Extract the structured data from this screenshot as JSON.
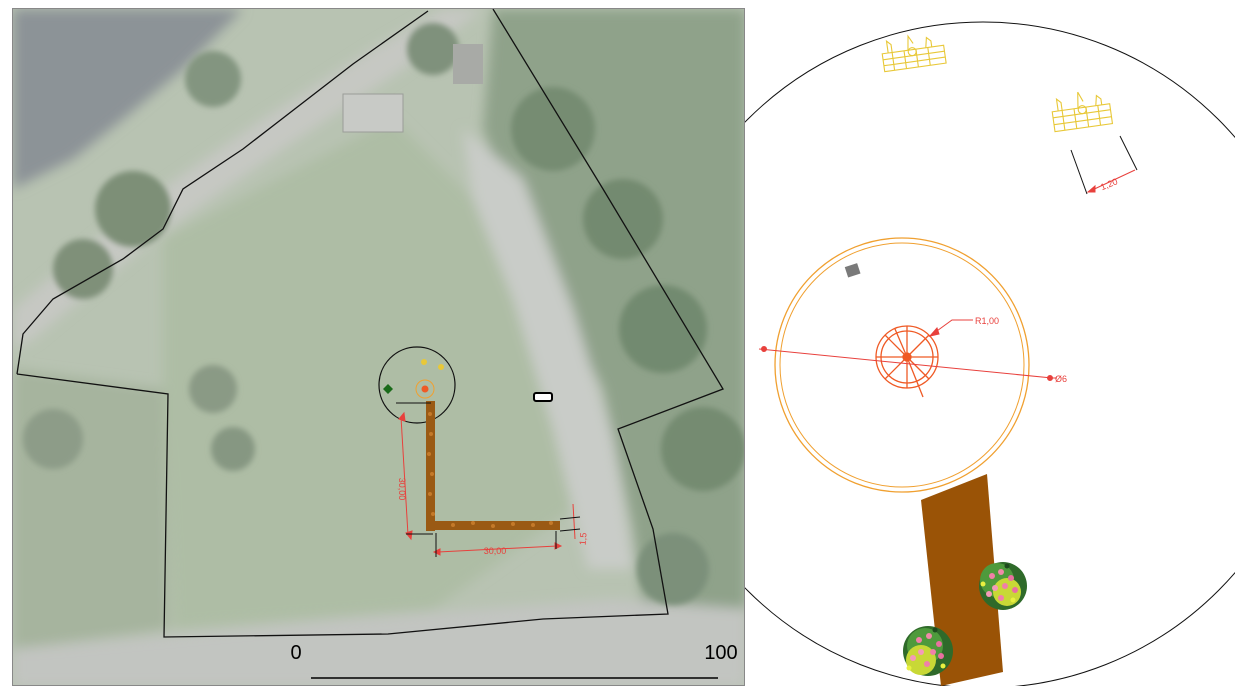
{
  "aerial_map": {
    "scale_bar": {
      "start_label": "0",
      "end_label": "100"
    },
    "dimensions": {
      "vertical_leg": "30,00",
      "horizontal_leg": "30,00",
      "path_width": "1,5"
    }
  },
  "detail_plan": {
    "dimensions": {
      "bench_width": "1,20",
      "tree_radius": "R1,00",
      "circle_diameter": "Ø6"
    }
  },
  "colors": {
    "boundary": "#111111",
    "dimension": "#e8403c",
    "path": "#9a5a14",
    "ring": "#f0a030",
    "tree": "#ef5a25",
    "bench": "#e8c838"
  },
  "icons": [
    "bench-icon",
    "tree-icon",
    "flower-shrub-icon",
    "bin-icon",
    "parked-car-icon"
  ]
}
